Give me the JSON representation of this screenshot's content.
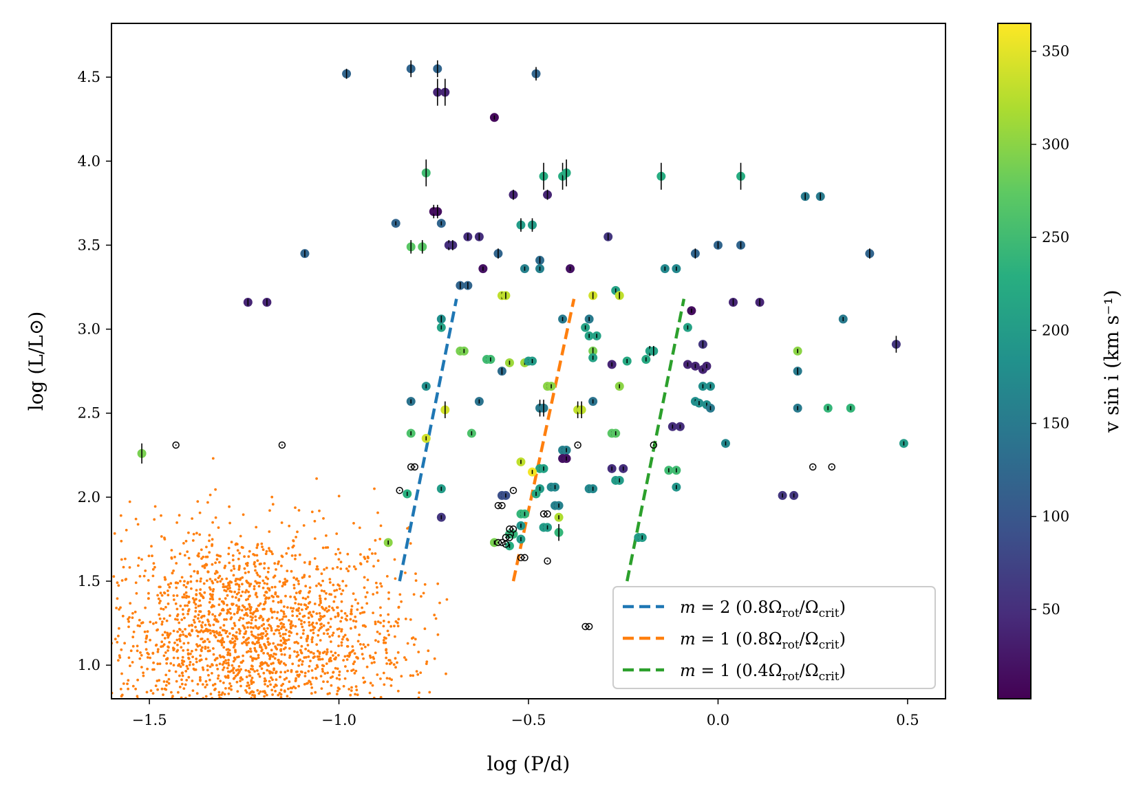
{
  "chart_data": {
    "type": "scatter",
    "xlabel": "log (P/d)",
    "ylabel": "log (L/L⊙)",
    "xlim": [
      -1.6,
      0.6
    ],
    "ylim": [
      0.8,
      4.82
    ],
    "x_ticks": [
      {
        "value": -1.5,
        "label": "−1.5"
      },
      {
        "value": -1.0,
        "label": "−1.0"
      },
      {
        "value": -0.5,
        "label": "−0.5"
      },
      {
        "value": 0.0,
        "label": "0.0"
      },
      {
        "value": 0.5,
        "label": "0.5"
      }
    ],
    "y_ticks": [
      {
        "value": 1.0,
        "label": "1.0"
      },
      {
        "value": 1.5,
        "label": "1.5"
      },
      {
        "value": 2.0,
        "label": "2.0"
      },
      {
        "value": 2.5,
        "label": "2.5"
      },
      {
        "value": 3.0,
        "label": "3.0"
      },
      {
        "value": 3.5,
        "label": "3.5"
      },
      {
        "value": 4.0,
        "label": "4.0"
      },
      {
        "value": 4.5,
        "label": "4.5"
      }
    ],
    "grid": false,
    "legend_position": "lower-right",
    "colorbar": {
      "label": "v sin i (km s⁻¹)",
      "colormap": "viridis",
      "range": [
        2,
        365
      ],
      "ticks": [
        {
          "value": 50,
          "label": "50"
        },
        {
          "value": 100,
          "label": "100"
        },
        {
          "value": 150,
          "label": "150"
        },
        {
          "value": 200,
          "label": "200"
        },
        {
          "value": 250,
          "label": "250"
        },
        {
          "value": 300,
          "label": "300"
        },
        {
          "value": 350,
          "label": "350"
        }
      ]
    },
    "lines": [
      {
        "name": "m = 2 (0.8Ωrot/Ωcrit)",
        "color": "#1f77b4",
        "x": [
          -0.84,
          -0.69
        ],
        "y": [
          1.5,
          3.18
        ]
      },
      {
        "name": "m = 1 (0.8Ωrot/Ωcrit)",
        "color": "#ff7f0e",
        "x": [
          -0.54,
          -0.38
        ],
        "y": [
          1.5,
          3.18
        ]
      },
      {
        "name": "m = 1 (0.4Ωrot/Ωcrit)",
        "color": "#2ca02c",
        "x": [
          -0.24,
          -0.09
        ],
        "y": [
          1.5,
          3.18
        ]
      }
    ],
    "legend": [
      {
        "math": "m",
        "eq": " = 2 (0.8Ω",
        "s1": "rot",
        "mid": "/Ω",
        "s2": "crit",
        "end": ")"
      },
      {
        "math": "m",
        "eq": " = 1 (0.8Ω",
        "s1": "rot",
        "mid": "/Ω",
        "s2": "crit",
        "end": ")"
      },
      {
        "math": "m",
        "eq": " = 1 (0.4Ω",
        "s1": "rot",
        "mid": "/Ω",
        "s2": "crit",
        "end": ")"
      }
    ],
    "background_sample": {
      "color": "#ff7f0e",
      "approx_count": 1800,
      "x_range": [
        -1.6,
        -0.69
      ],
      "y_range": [
        0.8,
        2.85
      ]
    },
    "stars": [
      {
        "x": -0.98,
        "y": 4.52,
        "v": 120,
        "err": 0.03
      },
      {
        "x": -0.81,
        "y": 4.55,
        "v": 120,
        "err": 0.05
      },
      {
        "x": -0.74,
        "y": 4.55,
        "v": 120,
        "err": 0.05
      },
      {
        "x": -0.74,
        "y": 4.41,
        "v": 40,
        "err": 0.08
      },
      {
        "x": -0.72,
        "y": 4.41,
        "v": 40,
        "err": 0.08
      },
      {
        "x": -0.48,
        "y": 4.52,
        "v": 120,
        "err": 0.04
      },
      {
        "x": -0.59,
        "y": 4.26,
        "v": 10,
        "err": 0
      },
      {
        "x": -0.77,
        "y": 3.93,
        "v": 250,
        "err": 0.08
      },
      {
        "x": -0.46,
        "y": 3.91,
        "v": 225,
        "err": 0.08
      },
      {
        "x": -0.41,
        "y": 3.91,
        "v": 225,
        "err": 0.08
      },
      {
        "x": -0.4,
        "y": 3.93,
        "v": 225,
        "err": 0.08
      },
      {
        "x": -0.15,
        "y": 3.91,
        "v": 225,
        "err": 0.08
      },
      {
        "x": 0.06,
        "y": 3.91,
        "v": 225,
        "err": 0.08
      },
      {
        "x": -0.54,
        "y": 3.8,
        "v": 40,
        "err": 0.03
      },
      {
        "x": -0.45,
        "y": 3.8,
        "v": 40,
        "err": 0.03
      },
      {
        "x": 0.23,
        "y": 3.79,
        "v": 150,
        "err": 0.02
      },
      {
        "x": 0.27,
        "y": 3.79,
        "v": 150,
        "err": 0.02
      },
      {
        "x": -0.75,
        "y": 3.7,
        "v": 15,
        "err": 0.04
      },
      {
        "x": -0.74,
        "y": 3.7,
        "v": 15,
        "err": 0.04
      },
      {
        "x": -0.85,
        "y": 3.63,
        "v": 120,
        "err": 0.01
      },
      {
        "x": -0.73,
        "y": 3.63,
        "v": 120,
        "err": 0.01
      },
      {
        "x": -0.52,
        "y": 3.62,
        "v": 200,
        "err": 0.04
      },
      {
        "x": -0.49,
        "y": 3.62,
        "v": 200,
        "err": 0.04
      },
      {
        "x": -0.66,
        "y": 3.55,
        "v": 50,
        "err": 0.02
      },
      {
        "x": -0.63,
        "y": 3.55,
        "v": 50,
        "err": 0.02
      },
      {
        "x": -0.29,
        "y": 3.55,
        "v": 60,
        "err": 0.02
      },
      {
        "x": -0.81,
        "y": 3.49,
        "v": 270,
        "err": 0.04
      },
      {
        "x": -0.78,
        "y": 3.49,
        "v": 270,
        "err": 0.04
      },
      {
        "x": -0.71,
        "y": 3.5,
        "v": 50,
        "err": 0.03
      },
      {
        "x": -0.7,
        "y": 3.5,
        "v": 50,
        "err": 0.03
      },
      {
        "x": -1.09,
        "y": 3.45,
        "v": 120,
        "err": 0.02
      },
      {
        "x": -0.58,
        "y": 3.45,
        "v": 120,
        "err": 0.03
      },
      {
        "x": -0.47,
        "y": 3.41,
        "v": 130,
        "err": 0.02
      },
      {
        "x": 0.0,
        "y": 3.5,
        "v": 120,
        "err": 0.02
      },
      {
        "x": 0.06,
        "y": 3.5,
        "v": 120,
        "err": 0.02
      },
      {
        "x": -0.06,
        "y": 3.45,
        "v": 120,
        "err": 0.03
      },
      {
        "x": 0.4,
        "y": 3.45,
        "v": 120,
        "err": 0.03
      },
      {
        "x": -0.62,
        "y": 3.36,
        "v": 20,
        "err": 0
      },
      {
        "x": -0.51,
        "y": 3.36,
        "v": 160,
        "err": 0.01
      },
      {
        "x": -0.47,
        "y": 3.36,
        "v": 160,
        "err": 0.01
      },
      {
        "x": -0.39,
        "y": 3.36,
        "v": 20,
        "err": 0
      },
      {
        "x": -0.14,
        "y": 3.36,
        "v": 170,
        "err": 0.01
      },
      {
        "x": -0.11,
        "y": 3.36,
        "v": 170,
        "err": 0.01
      },
      {
        "x": -0.68,
        "y": 3.26,
        "v": 120,
        "err": 0.02
      },
      {
        "x": -0.66,
        "y": 3.26,
        "v": 120,
        "err": 0.02
      },
      {
        "x": -0.57,
        "y": 3.2,
        "v": 330,
        "err": 0.02
      },
      {
        "x": -0.56,
        "y": 3.2,
        "v": 330,
        "err": 0.02
      },
      {
        "x": -0.33,
        "y": 3.2,
        "v": 340,
        "err": 0.02
      },
      {
        "x": -0.27,
        "y": 3.23,
        "v": 210,
        "err": 0.01
      },
      {
        "x": -0.26,
        "y": 3.2,
        "v": 330,
        "err": 0.02
      },
      {
        "x": -1.24,
        "y": 3.16,
        "v": 40,
        "err": 0.02
      },
      {
        "x": -1.19,
        "y": 3.16,
        "v": 40,
        "err": 0.02
      },
      {
        "x": 0.04,
        "y": 3.16,
        "v": 40,
        "err": 0.02
      },
      {
        "x": 0.11,
        "y": 3.16,
        "v": 40,
        "err": 0.02
      },
      {
        "x": -0.07,
        "y": 3.11,
        "v": 15,
        "err": 0
      },
      {
        "x": -0.73,
        "y": 3.06,
        "v": 180,
        "err": 0.02
      },
      {
        "x": -0.41,
        "y": 3.06,
        "v": 150,
        "err": 0.01
      },
      {
        "x": -0.34,
        "y": 3.06,
        "v": 150,
        "err": 0.01
      },
      {
        "x": 0.33,
        "y": 3.06,
        "v": 150,
        "err": 0.01
      },
      {
        "x": -0.73,
        "y": 3.01,
        "v": 210,
        "err": 0.01
      },
      {
        "x": -0.35,
        "y": 3.01,
        "v": 210,
        "err": 0.01
      },
      {
        "x": -0.08,
        "y": 3.01,
        "v": 210,
        "err": 0.01
      },
      {
        "x": -0.34,
        "y": 2.96,
        "v": 210,
        "err": 0.01
      },
      {
        "x": -0.32,
        "y": 2.96,
        "v": 210,
        "err": 0.01
      },
      {
        "x": -0.04,
        "y": 2.91,
        "v": 60,
        "err": 0.02
      },
      {
        "x": 0.47,
        "y": 2.91,
        "v": 60,
        "err": 0.05
      },
      {
        "x": -0.68,
        "y": 2.87,
        "v": 290,
        "err": 0.01
      },
      {
        "x": -0.67,
        "y": 2.87,
        "v": 290,
        "err": 0.01
      },
      {
        "x": -0.33,
        "y": 2.87,
        "v": 290,
        "err": 0.02
      },
      {
        "x": -0.18,
        "y": 2.87,
        "v": 210,
        "err": 0.03
      },
      {
        "x": -0.17,
        "y": 2.87,
        "v": 210,
        "err": 0.03
      },
      {
        "x": 0.21,
        "y": 2.87,
        "v": 300,
        "err": 0.01
      },
      {
        "x": -0.61,
        "y": 2.82,
        "v": 250,
        "err": 0.01
      },
      {
        "x": -0.6,
        "y": 2.82,
        "v": 250,
        "err": 0.01
      },
      {
        "x": -0.33,
        "y": 2.83,
        "v": 210,
        "err": 0.01
      },
      {
        "x": -0.24,
        "y": 2.81,
        "v": 220,
        "err": 0.01
      },
      {
        "x": -0.19,
        "y": 2.82,
        "v": 220,
        "err": 0.01
      },
      {
        "x": -0.55,
        "y": 2.8,
        "v": 310,
        "err": 0.01
      },
      {
        "x": -0.51,
        "y": 2.8,
        "v": 310,
        "err": 0.01
      },
      {
        "x": -0.5,
        "y": 2.81,
        "v": 200,
        "err": 0.01
      },
      {
        "x": -0.49,
        "y": 2.81,
        "v": 200,
        "err": 0.01
      },
      {
        "x": -0.28,
        "y": 2.79,
        "v": 40,
        "err": 0
      },
      {
        "x": -0.08,
        "y": 2.79,
        "v": 40,
        "err": 0
      },
      {
        "x": -0.06,
        "y": 2.78,
        "v": 40,
        "err": 0
      },
      {
        "x": -0.04,
        "y": 2.76,
        "v": 40,
        "err": 0
      },
      {
        "x": -0.03,
        "y": 2.78,
        "v": 40,
        "err": 0
      },
      {
        "x": -0.57,
        "y": 2.75,
        "v": 130,
        "err": 0.02
      },
      {
        "x": 0.21,
        "y": 2.75,
        "v": 150,
        "err": 0.02
      },
      {
        "x": -0.77,
        "y": 2.66,
        "v": 180,
        "err": 0.01
      },
      {
        "x": -0.45,
        "y": 2.66,
        "v": 300,
        "err": 0.01
      },
      {
        "x": -0.44,
        "y": 2.66,
        "v": 300,
        "err": 0.01
      },
      {
        "x": -0.26,
        "y": 2.66,
        "v": 300,
        "err": 0.01
      },
      {
        "x": -0.04,
        "y": 2.66,
        "v": 180,
        "err": 0.01
      },
      {
        "x": -0.02,
        "y": 2.66,
        "v": 180,
        "err": 0.01
      },
      {
        "x": -0.81,
        "y": 2.57,
        "v": 140,
        "err": 0.01
      },
      {
        "x": -0.63,
        "y": 2.57,
        "v": 140,
        "err": 0.01
      },
      {
        "x": -0.33,
        "y": 2.57,
        "v": 140,
        "err": 0.01
      },
      {
        "x": -0.06,
        "y": 2.57,
        "v": 180,
        "err": 0.01
      },
      {
        "x": -0.05,
        "y": 2.56,
        "v": 180,
        "err": 0.01
      },
      {
        "x": -0.03,
        "y": 2.55,
        "v": 180,
        "err": 0.01
      },
      {
        "x": -0.02,
        "y": 2.53,
        "v": 150,
        "err": 0.01
      },
      {
        "x": -0.72,
        "y": 2.52,
        "v": 340,
        "err": 0.05
      },
      {
        "x": -0.47,
        "y": 2.53,
        "v": 150,
        "err": 0.05
      },
      {
        "x": -0.46,
        "y": 2.53,
        "v": 150,
        "err": 0.05
      },
      {
        "x": -0.37,
        "y": 2.52,
        "v": 330,
        "err": 0.05
      },
      {
        "x": -0.36,
        "y": 2.52,
        "v": 330,
        "err": 0.05
      },
      {
        "x": 0.21,
        "y": 2.53,
        "v": 150,
        "err": 0.01
      },
      {
        "x": 0.29,
        "y": 2.53,
        "v": 240,
        "err": 0.01
      },
      {
        "x": 0.35,
        "y": 2.53,
        "v": 240,
        "err": 0.01
      },
      {
        "x": -0.81,
        "y": 2.38,
        "v": 260,
        "err": 0.01
      },
      {
        "x": -0.65,
        "y": 2.38,
        "v": 260,
        "err": 0.01
      },
      {
        "x": -0.28,
        "y": 2.38,
        "v": 270,
        "err": 0.01
      },
      {
        "x": -0.27,
        "y": 2.38,
        "v": 270,
        "err": 0.01
      },
      {
        "x": -0.77,
        "y": 2.35,
        "v": 340,
        "err": 0.01
      },
      {
        "x": -0.12,
        "y": 2.42,
        "v": 50,
        "err": 0.01
      },
      {
        "x": -0.1,
        "y": 2.42,
        "v": 50,
        "err": 0.01
      },
      {
        "x": -1.52,
        "y": 2.26,
        "v": 290,
        "err": 0.06
      },
      {
        "x": -0.41,
        "y": 2.28,
        "v": 160,
        "err": 0.01
      },
      {
        "x": -0.4,
        "y": 2.28,
        "v": 160,
        "err": 0.01
      },
      {
        "x": 0.02,
        "y": 2.32,
        "v": 170,
        "err": 0.01
      },
      {
        "x": 0.49,
        "y": 2.32,
        "v": 200,
        "err": 0.01
      },
      {
        "x": -0.41,
        "y": 2.23,
        "v": 20,
        "err": 0
      },
      {
        "x": -0.4,
        "y": 2.23,
        "v": 20,
        "err": 0
      },
      {
        "x": -0.52,
        "y": 2.21,
        "v": 330,
        "err": 0.01
      },
      {
        "x": -0.47,
        "y": 2.17,
        "v": 210,
        "err": 0.01
      },
      {
        "x": -0.46,
        "y": 2.17,
        "v": 210,
        "err": 0.01
      },
      {
        "x": -0.28,
        "y": 2.17,
        "v": 50,
        "err": 0.01
      },
      {
        "x": -0.25,
        "y": 2.17,
        "v": 50,
        "err": 0.01
      },
      {
        "x": -0.13,
        "y": 2.16,
        "v": 250,
        "err": 0.01
      },
      {
        "x": -0.11,
        "y": 2.16,
        "v": 250,
        "err": 0.01
      },
      {
        "x": -0.27,
        "y": 2.1,
        "v": 200,
        "err": 0.01
      },
      {
        "x": -0.26,
        "y": 2.1,
        "v": 200,
        "err": 0.01
      },
      {
        "x": -0.73,
        "y": 2.05,
        "v": 200,
        "err": 0.01
      },
      {
        "x": -0.47,
        "y": 2.05,
        "v": 200,
        "err": 0.01
      },
      {
        "x": -0.44,
        "y": 2.06,
        "v": 170,
        "err": 0.01
      },
      {
        "x": -0.43,
        "y": 2.06,
        "v": 170,
        "err": 0.01
      },
      {
        "x": -0.34,
        "y": 2.05,
        "v": 170,
        "err": 0.01
      },
      {
        "x": -0.33,
        "y": 2.05,
        "v": 170,
        "err": 0.01
      },
      {
        "x": -0.11,
        "y": 2.06,
        "v": 190,
        "err": 0.01
      },
      {
        "x": -0.57,
        "y": 2.01,
        "v": 90,
        "err": 0.01
      },
      {
        "x": -0.56,
        "y": 2.01,
        "v": 90,
        "err": 0.01
      },
      {
        "x": -0.48,
        "y": 2.02,
        "v": 220,
        "err": 0.01
      },
      {
        "x": 0.17,
        "y": 2.01,
        "v": 60,
        "err": 0.01
      },
      {
        "x": 0.2,
        "y": 2.01,
        "v": 60,
        "err": 0.01
      },
      {
        "x": -0.82,
        "y": 2.02,
        "v": 230,
        "err": 0.01
      },
      {
        "x": -0.43,
        "y": 1.95,
        "v": 160,
        "err": 0.01
      },
      {
        "x": -0.42,
        "y": 1.95,
        "v": 160,
        "err": 0.01
      },
      {
        "x": -0.52,
        "y": 1.9,
        "v": 240,
        "err": 0.01
      },
      {
        "x": -0.51,
        "y": 1.9,
        "v": 240,
        "err": 0.01
      },
      {
        "x": -0.42,
        "y": 1.88,
        "v": 320,
        "err": 0.01
      },
      {
        "x": -0.73,
        "y": 1.88,
        "v": 60,
        "err": 0.01
      },
      {
        "x": -0.52,
        "y": 1.83,
        "v": 190,
        "err": 0.01
      },
      {
        "x": -0.46,
        "y": 1.82,
        "v": 200,
        "err": 0.01
      },
      {
        "x": -0.45,
        "y": 1.82,
        "v": 200,
        "err": 0.01
      },
      {
        "x": -0.42,
        "y": 1.79,
        "v": 240,
        "err": 0.05
      },
      {
        "x": -0.55,
        "y": 1.78,
        "v": 240,
        "err": 0.01
      },
      {
        "x": -0.54,
        "y": 1.78,
        "v": 240,
        "err": 0.01
      },
      {
        "x": -0.52,
        "y": 1.75,
        "v": 200,
        "err": 0.01
      },
      {
        "x": -0.21,
        "y": 1.76,
        "v": 200,
        "err": 0.01
      },
      {
        "x": -0.2,
        "y": 1.76,
        "v": 200,
        "err": 0.01
      },
      {
        "x": -0.59,
        "y": 1.73,
        "v": 290,
        "err": 0.01
      },
      {
        "x": -0.87,
        "y": 1.73,
        "v": 300,
        "err": 0.01
      },
      {
        "x": -0.55,
        "y": 1.71,
        "v": 230,
        "err": 0.01
      },
      {
        "x": -0.49,
        "y": 2.15,
        "v": 360,
        "err": 0
      }
    ],
    "unknown_vsini": [
      {
        "x": -1.43,
        "y": 2.31
      },
      {
        "x": -1.15,
        "y": 2.31
      },
      {
        "x": -0.37,
        "y": 2.31
      },
      {
        "x": -0.17,
        "y": 2.31
      },
      {
        "x": -0.81,
        "y": 2.18
      },
      {
        "x": -0.8,
        "y": 2.18
      },
      {
        "x": 0.25,
        "y": 2.18
      },
      {
        "x": 0.3,
        "y": 2.18
      },
      {
        "x": -0.84,
        "y": 2.04
      },
      {
        "x": -0.54,
        "y": 2.04
      },
      {
        "x": -0.58,
        "y": 1.95
      },
      {
        "x": -0.57,
        "y": 1.95
      },
      {
        "x": -0.46,
        "y": 1.9
      },
      {
        "x": -0.45,
        "y": 1.9
      },
      {
        "x": -0.55,
        "y": 1.81
      },
      {
        "x": -0.54,
        "y": 1.81
      },
      {
        "x": -0.56,
        "y": 1.76
      },
      {
        "x": -0.55,
        "y": 1.76
      },
      {
        "x": -0.58,
        "y": 1.73
      },
      {
        "x": -0.57,
        "y": 1.73
      },
      {
        "x": -0.56,
        "y": 1.72
      },
      {
        "x": -0.52,
        "y": 1.64
      },
      {
        "x": -0.51,
        "y": 1.64
      },
      {
        "x": -0.45,
        "y": 1.62
      },
      {
        "x": -0.35,
        "y": 1.23
      },
      {
        "x": -0.34,
        "y": 1.23
      }
    ]
  }
}
